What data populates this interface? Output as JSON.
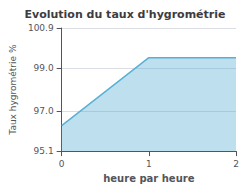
{
  "chart_data": {
    "type": "area",
    "title": "Evolution du taux d'hygrométrie",
    "xlabel": "heure par heure",
    "ylabel": "Taux hygrométrie %",
    "x": [
      0,
      1,
      2
    ],
    "values": [
      96.3,
      99.5,
      99.5
    ],
    "color": "#5ab0d5",
    "xlim": [
      0,
      2
    ],
    "xticks": [
      0,
      1,
      2
    ],
    "ylim": [
      95.1,
      100.9
    ],
    "yticks": [
      95.1,
      {
        "value": 97.0,
        "label": "97.0"
      },
      {
        "value": 99.0,
        "label": "99.0"
      },
      100.9
    ],
    "grid": true
  }
}
